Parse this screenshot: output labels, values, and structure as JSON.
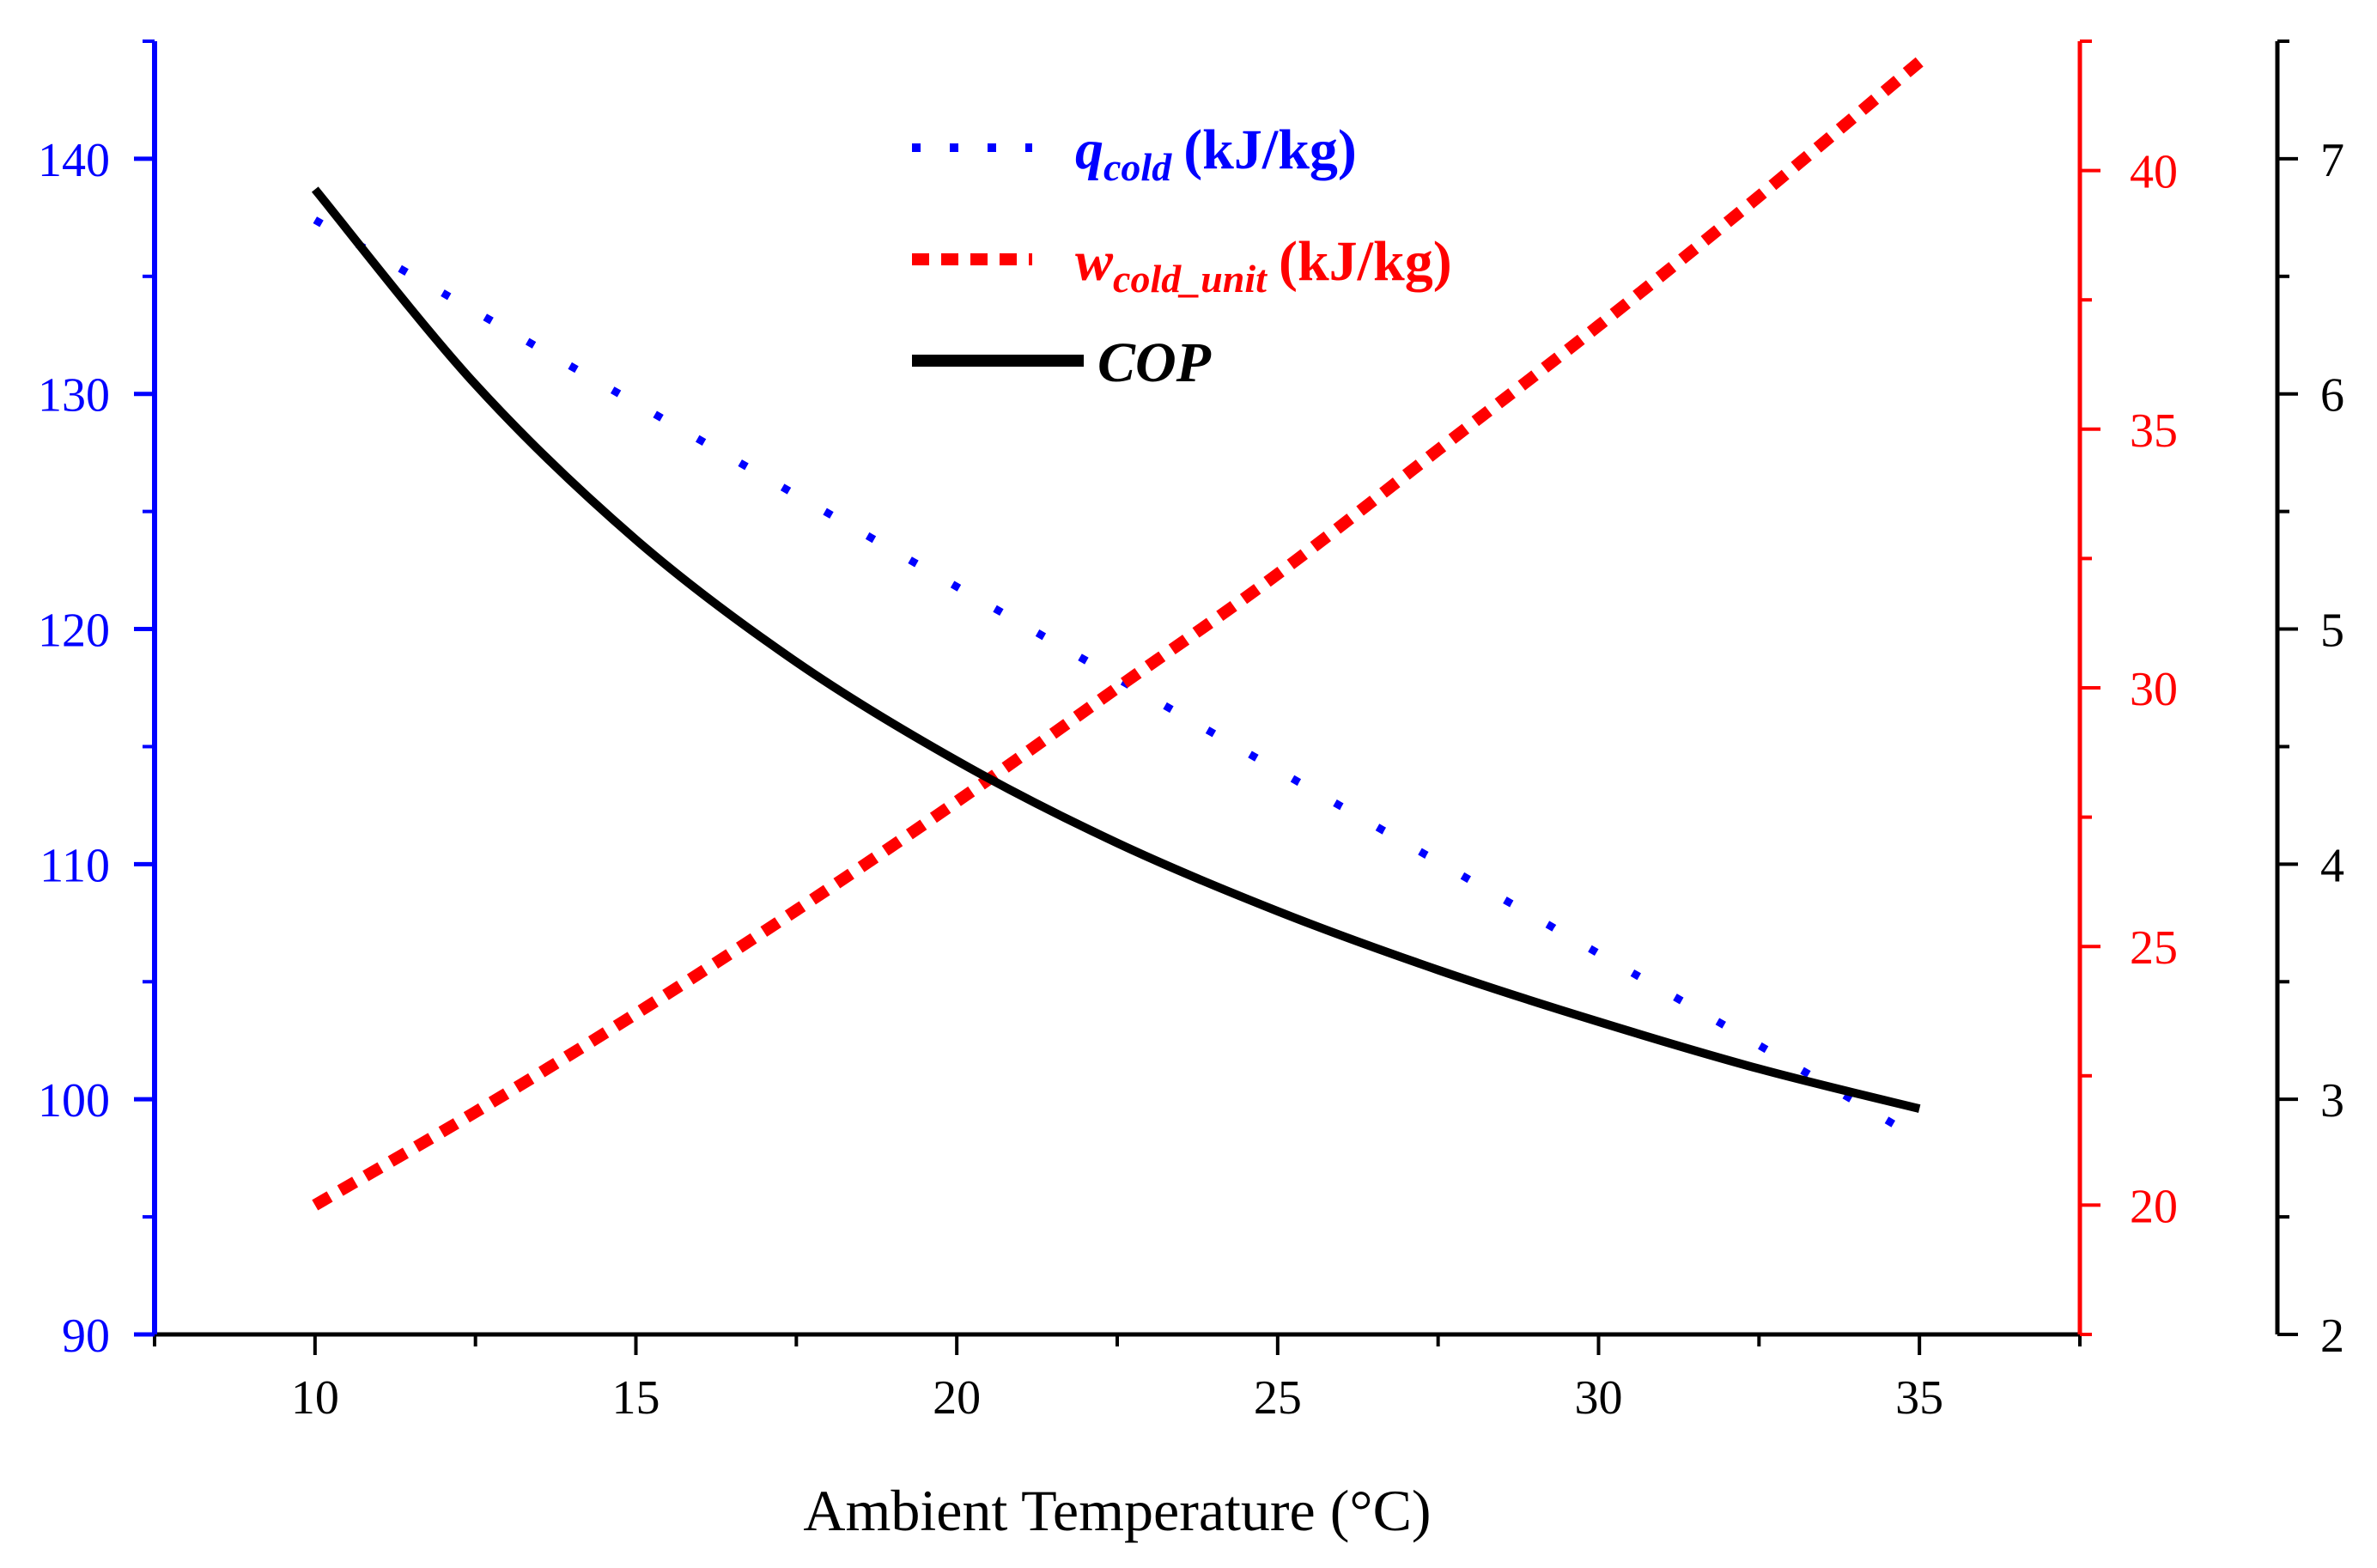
{
  "chart_data": {
    "type": "line",
    "xlabel": "Ambient Temperature (°C)",
    "x_range": [
      7.5,
      37.5
    ],
    "x_ticks": [
      10,
      15,
      20,
      25,
      30,
      35
    ],
    "axes": {
      "left": {
        "color": "#0000ff",
        "range": [
          90,
          145
        ],
        "ticks": [
          90,
          100,
          110,
          120,
          130,
          140
        ]
      },
      "right1": {
        "color": "#ff0000",
        "range": [
          17.5,
          42.5
        ],
        "ticks": [
          20,
          25,
          30,
          35,
          40
        ]
      },
      "right2": {
        "color": "#000000",
        "range": [
          2,
          7.5
        ],
        "ticks": [
          2,
          3,
          4,
          5,
          6,
          7
        ]
      }
    },
    "series": [
      {
        "key": "q",
        "name_main": "q",
        "name_sub": "cold",
        "name_unit": "(kJ/kg)",
        "axis": "left",
        "color": "#0000ff",
        "style": "dotted",
        "x": [
          10,
          12.5,
          15,
          17.5,
          20,
          22.5,
          25,
          27.5,
          30,
          32.5,
          35
        ],
        "values": [
          137.4,
          133.5,
          129.6,
          125.7,
          121.8,
          117.9,
          114.0,
          110.1,
          106.2,
          102.3,
          98.3
        ]
      },
      {
        "key": "w",
        "name_main": "w",
        "name_sub": "cold_unit",
        "name_unit": "(kJ/kg)",
        "axis": "right1",
        "color": "#ff0000",
        "style": "dashed",
        "x": [
          10,
          12.5,
          15,
          17.5,
          20,
          22.5,
          25,
          27.5,
          30,
          32.5,
          35
        ],
        "values": [
          20.0,
          21.8,
          23.7,
          25.7,
          27.8,
          30.0,
          32.2,
          34.6,
          37.0,
          39.5,
          42.1
        ]
      },
      {
        "key": "cop",
        "name_main": "COP",
        "name_sub": "",
        "name_unit": "",
        "axis": "right2",
        "color": "#000000",
        "style": "solid",
        "x": [
          10,
          12.5,
          15,
          17.5,
          20,
          22.5,
          25,
          27.5,
          30,
          32.5,
          35
        ],
        "values": [
          6.87,
          6.04,
          5.38,
          4.86,
          4.44,
          4.09,
          3.8,
          3.55,
          3.33,
          3.13,
          2.96
        ]
      }
    ]
  }
}
